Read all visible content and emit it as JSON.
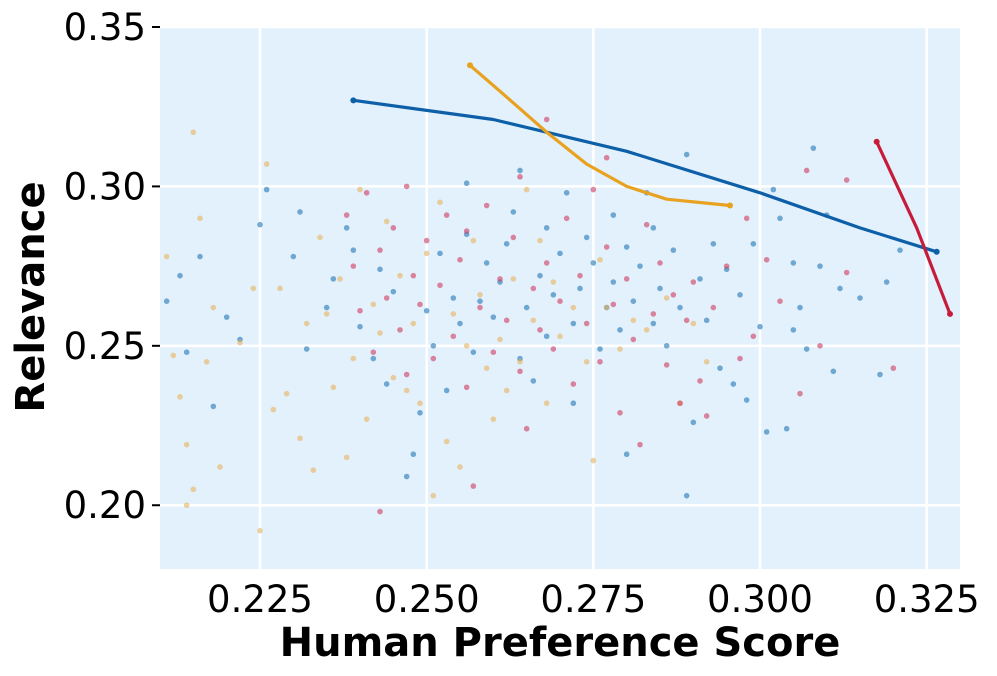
{
  "chart_data": {
    "type": "scatter",
    "title": "",
    "xlabel": "Human Preference Score",
    "ylabel": "Relevance",
    "xlim": [
      0.21,
      0.33
    ],
    "ylim": [
      0.18,
      0.35
    ],
    "xticks": [
      0.225,
      0.25,
      0.275,
      0.3,
      0.325
    ],
    "xtick_labels": [
      "0.225",
      "0.250",
      "0.275",
      "0.300",
      "0.325"
    ],
    "yticks": [
      0.2,
      0.25,
      0.3,
      0.35
    ],
    "ytick_labels": [
      "0.20",
      "0.25",
      "0.30",
      "0.35"
    ],
    "grid": true,
    "legend": "none",
    "colors": {
      "background": "#e3f1fd",
      "grid": "#ffffff",
      "blue": "#1f77b4",
      "blue_line": "#0d5fa8",
      "orange": "#e8b35c",
      "orange_line": "#e8a21f",
      "red": "#d03a5f",
      "red_line": "#c51c3a"
    },
    "series": [
      {
        "color": "#1f77b4",
        "points": [
          [
            0.211,
            0.264
          ],
          [
            0.213,
            0.272
          ],
          [
            0.214,
            0.248
          ],
          [
            0.216,
            0.278
          ],
          [
            0.218,
            0.231
          ],
          [
            0.22,
            0.259
          ],
          [
            0.222,
            0.252
          ],
          [
            0.225,
            0.288
          ],
          [
            0.226,
            0.299
          ],
          [
            0.23,
            0.278
          ],
          [
            0.231,
            0.292
          ],
          [
            0.232,
            0.249
          ],
          [
            0.235,
            0.262
          ],
          [
            0.236,
            0.271
          ],
          [
            0.238,
            0.287
          ],
          [
            0.239,
            0.28
          ],
          [
            0.24,
            0.256
          ],
          [
            0.242,
            0.246
          ],
          [
            0.243,
            0.274
          ],
          [
            0.244,
            0.238
          ],
          [
            0.245,
            0.267
          ],
          [
            0.247,
            0.209
          ],
          [
            0.248,
            0.216
          ],
          [
            0.249,
            0.229
          ],
          [
            0.25,
            0.261
          ],
          [
            0.251,
            0.25
          ],
          [
            0.252,
            0.279
          ],
          [
            0.253,
            0.236
          ],
          [
            0.254,
            0.265
          ],
          [
            0.255,
            0.257
          ],
          [
            0.256,
            0.301
          ],
          [
            0.256,
            0.285
          ],
          [
            0.257,
            0.248
          ],
          [
            0.258,
            0.264
          ],
          [
            0.259,
            0.276
          ],
          [
            0.26,
            0.259
          ],
          [
            0.261,
            0.27
          ],
          [
            0.262,
            0.282
          ],
          [
            0.263,
            0.292
          ],
          [
            0.264,
            0.246
          ],
          [
            0.264,
            0.305
          ],
          [
            0.265,
            0.262
          ],
          [
            0.266,
            0.239
          ],
          [
            0.267,
            0.272
          ],
          [
            0.268,
            0.287
          ],
          [
            0.268,
            0.253
          ],
          [
            0.269,
            0.266
          ],
          [
            0.27,
            0.279
          ],
          [
            0.271,
            0.298
          ],
          [
            0.272,
            0.257
          ],
          [
            0.272,
            0.232
          ],
          [
            0.273,
            0.268
          ],
          [
            0.274,
            0.284
          ],
          [
            0.275,
            0.276
          ],
          [
            0.276,
            0.249
          ],
          [
            0.277,
            0.262
          ],
          [
            0.278,
            0.291
          ],
          [
            0.278,
            0.27
          ],
          [
            0.279,
            0.255
          ],
          [
            0.28,
            0.216
          ],
          [
            0.28,
            0.281
          ],
          [
            0.281,
            0.264
          ],
          [
            0.282,
            0.275
          ],
          [
            0.283,
            0.298
          ],
          [
            0.284,
            0.257
          ],
          [
            0.284,
            0.287
          ],
          [
            0.285,
            0.268
          ],
          [
            0.286,
            0.25
          ],
          [
            0.287,
            0.28
          ],
          [
            0.288,
            0.262
          ],
          [
            0.289,
            0.31
          ],
          [
            0.289,
            0.203
          ],
          [
            0.29,
            0.226
          ],
          [
            0.291,
            0.271
          ],
          [
            0.292,
            0.258
          ],
          [
            0.293,
            0.282
          ],
          [
            0.294,
            0.243
          ],
          [
            0.295,
            0.274
          ],
          [
            0.296,
            0.238
          ],
          [
            0.297,
            0.266
          ],
          [
            0.298,
            0.233
          ],
          [
            0.299,
            0.282
          ],
          [
            0.3,
            0.256
          ],
          [
            0.301,
            0.223
          ],
          [
            0.302,
            0.299
          ],
          [
            0.303,
            0.29
          ],
          [
            0.304,
            0.224
          ],
          [
            0.305,
            0.255
          ],
          [
            0.306,
            0.262
          ],
          [
            0.307,
            0.249
          ],
          [
            0.308,
            0.312
          ],
          [
            0.309,
            0.275
          ],
          [
            0.31,
            0.291
          ],
          [
            0.311,
            0.242
          ],
          [
            0.312,
            0.268
          ],
          [
            0.315,
            0.265
          ],
          [
            0.318,
            0.241
          ],
          [
            0.319,
            0.27
          ],
          [
            0.321,
            0.28
          ],
          [
            0.305,
            0.276
          ]
        ]
      },
      {
        "color": "#e8b35c",
        "points": [
          [
            0.211,
            0.278
          ],
          [
            0.212,
            0.247
          ],
          [
            0.213,
            0.234
          ],
          [
            0.214,
            0.219
          ],
          [
            0.214,
            0.2
          ],
          [
            0.215,
            0.205
          ],
          [
            0.215,
            0.317
          ],
          [
            0.216,
            0.29
          ],
          [
            0.217,
            0.245
          ],
          [
            0.218,
            0.262
          ],
          [
            0.219,
            0.212
          ],
          [
            0.222,
            0.251
          ],
          [
            0.224,
            0.268
          ],
          [
            0.225,
            0.192
          ],
          [
            0.226,
            0.307
          ],
          [
            0.227,
            0.23
          ],
          [
            0.228,
            0.268
          ],
          [
            0.229,
            0.235
          ],
          [
            0.231,
            0.221
          ],
          [
            0.232,
            0.257
          ],
          [
            0.233,
            0.211
          ],
          [
            0.234,
            0.284
          ],
          [
            0.235,
            0.26
          ],
          [
            0.236,
            0.237
          ],
          [
            0.237,
            0.271
          ],
          [
            0.238,
            0.215
          ],
          [
            0.239,
            0.246
          ],
          [
            0.24,
            0.299
          ],
          [
            0.241,
            0.227
          ],
          [
            0.242,
            0.263
          ],
          [
            0.243,
            0.254
          ],
          [
            0.244,
            0.289
          ],
          [
            0.245,
            0.24
          ],
          [
            0.246,
            0.272
          ],
          [
            0.247,
            0.236
          ],
          [
            0.248,
            0.257
          ],
          [
            0.249,
            0.232
          ],
          [
            0.25,
            0.279
          ],
          [
            0.251,
            0.203
          ],
          [
            0.252,
            0.295
          ],
          [
            0.253,
            0.22
          ],
          [
            0.254,
            0.26
          ],
          [
            0.255,
            0.212
          ],
          [
            0.256,
            0.25
          ],
          [
            0.257,
            0.283
          ],
          [
            0.258,
            0.266
          ],
          [
            0.259,
            0.243
          ],
          [
            0.26,
            0.227
          ],
          [
            0.261,
            0.252
          ],
          [
            0.262,
            0.236
          ],
          [
            0.263,
            0.271
          ],
          [
            0.264,
            0.245
          ],
          [
            0.265,
            0.299
          ],
          [
            0.266,
            0.258
          ],
          [
            0.267,
            0.283
          ],
          [
            0.268,
            0.232
          ],
          [
            0.269,
            0.27
          ],
          [
            0.27,
            0.253
          ],
          [
            0.272,
            0.262
          ],
          [
            0.274,
            0.245
          ],
          [
            0.275,
            0.214
          ],
          [
            0.276,
            0.277
          ],
          [
            0.277,
            0.262
          ],
          [
            0.279,
            0.249
          ],
          [
            0.281,
            0.258
          ],
          [
            0.283,
            0.255
          ],
          [
            0.286,
            0.265
          ],
          [
            0.288,
            0.232
          ],
          [
            0.29,
            0.257
          ],
          [
            0.292,
            0.245
          ]
        ]
      },
      {
        "color": "#d03a5f",
        "points": [
          [
            0.238,
            0.291
          ],
          [
            0.239,
            0.275
          ],
          [
            0.24,
            0.261
          ],
          [
            0.241,
            0.298
          ],
          [
            0.242,
            0.248
          ],
          [
            0.243,
            0.198
          ],
          [
            0.243,
            0.28
          ],
          [
            0.244,
            0.265
          ],
          [
            0.245,
            0.287
          ],
          [
            0.246,
            0.255
          ],
          [
            0.247,
            0.3
          ],
          [
            0.247,
            0.241
          ],
          [
            0.248,
            0.272
          ],
          [
            0.249,
            0.263
          ],
          [
            0.25,
            0.283
          ],
          [
            0.251,
            0.246
          ],
          [
            0.252,
            0.269
          ],
          [
            0.253,
            0.291
          ],
          [
            0.254,
            0.253
          ],
          [
            0.255,
            0.277
          ],
          [
            0.256,
            0.237
          ],
          [
            0.256,
            0.286
          ],
          [
            0.257,
            0.206
          ],
          [
            0.258,
            0.262
          ],
          [
            0.259,
            0.294
          ],
          [
            0.26,
            0.248
          ],
          [
            0.261,
            0.271
          ],
          [
            0.262,
            0.258
          ],
          [
            0.263,
            0.284
          ],
          [
            0.264,
            0.242
          ],
          [
            0.264,
            0.303
          ],
          [
            0.265,
            0.224
          ],
          [
            0.266,
            0.268
          ],
          [
            0.267,
            0.255
          ],
          [
            0.268,
            0.321
          ],
          [
            0.268,
            0.276
          ],
          [
            0.269,
            0.249
          ],
          [
            0.27,
            0.264
          ],
          [
            0.271,
            0.29
          ],
          [
            0.272,
            0.238
          ],
          [
            0.273,
            0.272
          ],
          [
            0.274,
            0.257
          ],
          [
            0.275,
            0.299
          ],
          [
            0.276,
            0.245
          ],
          [
            0.277,
            0.281
          ],
          [
            0.277,
            0.309
          ],
          [
            0.278,
            0.263
          ],
          [
            0.279,
            0.229
          ],
          [
            0.28,
            0.271
          ],
          [
            0.281,
            0.252
          ],
          [
            0.282,
            0.219
          ],
          [
            0.283,
            0.288
          ],
          [
            0.284,
            0.26
          ],
          [
            0.285,
            0.276
          ],
          [
            0.286,
            0.244
          ],
          [
            0.287,
            0.266
          ],
          [
            0.288,
            0.232
          ],
          [
            0.289,
            0.258
          ],
          [
            0.29,
            0.27
          ],
          [
            0.291,
            0.239
          ],
          [
            0.292,
            0.228
          ],
          [
            0.293,
            0.262
          ],
          [
            0.295,
            0.275
          ],
          [
            0.297,
            0.246
          ],
          [
            0.298,
            0.29
          ],
          [
            0.299,
            0.253
          ],
          [
            0.301,
            0.277
          ],
          [
            0.303,
            0.264
          ],
          [
            0.306,
            0.235
          ],
          [
            0.307,
            0.305
          ],
          [
            0.309,
            0.25
          ],
          [
            0.313,
            0.302
          ],
          [
            0.313,
            0.273
          ],
          [
            0.32,
            0.243
          ]
        ]
      }
    ],
    "fit_lines": [
      {
        "color": "#0d5fa8",
        "points": [
          [
            0.239,
            0.327
          ],
          [
            0.26,
            0.321
          ],
          [
            0.28,
            0.311
          ],
          [
            0.3,
            0.298
          ],
          [
            0.315,
            0.287
          ],
          [
            0.3265,
            0.2795
          ]
        ]
      },
      {
        "color": "#e8a21f",
        "points": [
          [
            0.2565,
            0.338
          ],
          [
            0.262,
            0.328
          ],
          [
            0.268,
            0.317
          ],
          [
            0.274,
            0.307
          ],
          [
            0.28,
            0.3
          ],
          [
            0.286,
            0.296
          ],
          [
            0.2955,
            0.294
          ]
        ]
      },
      {
        "color": "#c51c3a",
        "points": [
          [
            0.3175,
            0.314
          ],
          [
            0.3235,
            0.287
          ],
          [
            0.3285,
            0.26
          ]
        ]
      }
    ]
  }
}
